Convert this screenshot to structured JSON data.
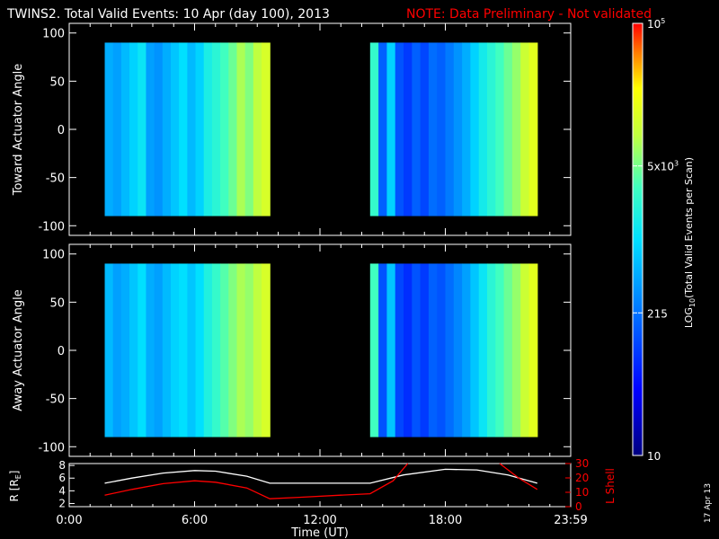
{
  "header": {
    "title": "TWINS2. Total Valid Events: 10 Apr (day 100), 2013",
    "note": "NOTE: Data Preliminary - Not validated"
  },
  "footer_date": "17 Apr 13",
  "colors": {
    "background": "#000000",
    "axes": "#ffffff",
    "note": "#ff0000",
    "r_line": "#ffffff",
    "lshell_line": "#ff0000"
  },
  "chart_data": [
    {
      "type": "heatmap",
      "name": "toward",
      "ylabel": "Toward Actuator Angle",
      "ylim": [
        -110,
        110
      ],
      "yticks": [
        100,
        50,
        0,
        -50,
        -100
      ],
      "y_range": [
        -90,
        90
      ],
      "xlim_hours": [
        0,
        24
      ],
      "blocks": [
        {
          "x_start_hours": 1.7,
          "x_end_hours": 9.6,
          "level": [
            0.42,
            0.4,
            0.44,
            0.48,
            0.52,
            0.4,
            0.38,
            0.42,
            0.46,
            0.5,
            0.44,
            0.48,
            0.55,
            0.58,
            0.62,
            0.66,
            0.72,
            0.68,
            0.74,
            0.78
          ]
        },
        {
          "x_start_hours": 14.4,
          "x_end_hours": 22.4,
          "level": [
            0.6,
            0.3,
            0.48,
            0.28,
            0.24,
            0.3,
            0.26,
            0.32,
            0.3,
            0.34,
            0.38,
            0.42,
            0.48,
            0.54,
            0.58,
            0.62,
            0.66,
            0.7,
            0.76,
            0.8
          ]
        }
      ]
    },
    {
      "type": "heatmap",
      "name": "away",
      "ylabel": "Away Actuator Angle",
      "ylim": [
        -110,
        110
      ],
      "yticks": [
        100,
        50,
        0,
        -50,
        -100
      ],
      "y_range": [
        -90,
        90
      ],
      "xlim_hours": [
        0,
        24
      ],
      "blocks": [
        {
          "x_start_hours": 1.7,
          "x_end_hours": 9.6,
          "level": [
            0.44,
            0.4,
            0.42,
            0.46,
            0.5,
            0.42,
            0.4,
            0.44,
            0.48,
            0.5,
            0.46,
            0.5,
            0.56,
            0.6,
            0.64,
            0.68,
            0.72,
            0.7,
            0.74,
            0.78
          ]
        },
        {
          "x_start_hours": 14.4,
          "x_end_hours": 22.4,
          "level": [
            0.62,
            0.28,
            0.46,
            0.26,
            0.22,
            0.28,
            0.24,
            0.3,
            0.28,
            0.32,
            0.36,
            0.4,
            0.46,
            0.52,
            0.58,
            0.62,
            0.66,
            0.7,
            0.76,
            0.8
          ]
        }
      ]
    },
    {
      "type": "line",
      "name": "orbit",
      "xlabel": "Time (UT)",
      "xticks": [
        "0:00",
        "6:00",
        "12:00",
        "18:00",
        "23:59"
      ],
      "xtick_hours": [
        0,
        6,
        12,
        18,
        24
      ],
      "ylabel_left": "R [R",
      "ylabel_left_sub": "E",
      "ylabel_left_end": "]",
      "ylim_left": [
        1.5,
        8.3
      ],
      "yticks_left": [
        8,
        6,
        4,
        2
      ],
      "ylabel_right": "L Shell",
      "ylim_right": [
        0,
        30
      ],
      "yticks_right": [
        30,
        20,
        10,
        0
      ],
      "series": [
        {
          "axis": "left",
          "x_hours": [
            1.7,
            3,
            4.5,
            6,
            7,
            8.5,
            9.6,
            14.4,
            16,
            18,
            19.5,
            21,
            22.4
          ],
          "y": [
            5.2,
            6.0,
            6.8,
            7.2,
            7.1,
            6.3,
            5.2,
            5.2,
            6.5,
            7.4,
            7.3,
            6.5,
            5.2
          ]
        },
        {
          "axis": "right",
          "x_hours": [
            1.7,
            3,
            4.5,
            6,
            7,
            8.5,
            9.6,
            11,
            13,
            14.4,
            15.5,
            16.2
          ],
          "y": [
            8,
            12,
            16,
            18,
            17,
            13,
            5.5,
            6.5,
            8,
            9,
            18,
            30
          ]
        },
        {
          "axis": "right",
          "x_hours": [
            20.6,
            21.5,
            22.4
          ],
          "y": [
            30,
            20,
            12
          ]
        }
      ]
    }
  ],
  "colorbar": {
    "label": "LOG",
    "label_sub": "10",
    "label_rest": "(Total Valid Events per Scan)",
    "tick_labels": [
      {
        "text": "10",
        "sup": "5",
        "frac": 1.0
      },
      {
        "text": "5x10",
        "sup": "3",
        "frac": 0.67
      },
      {
        "text": "215",
        "sup": "",
        "frac": 0.33
      },
      {
        "text": "10",
        "sup": "",
        "frac": 0.0
      }
    ]
  }
}
